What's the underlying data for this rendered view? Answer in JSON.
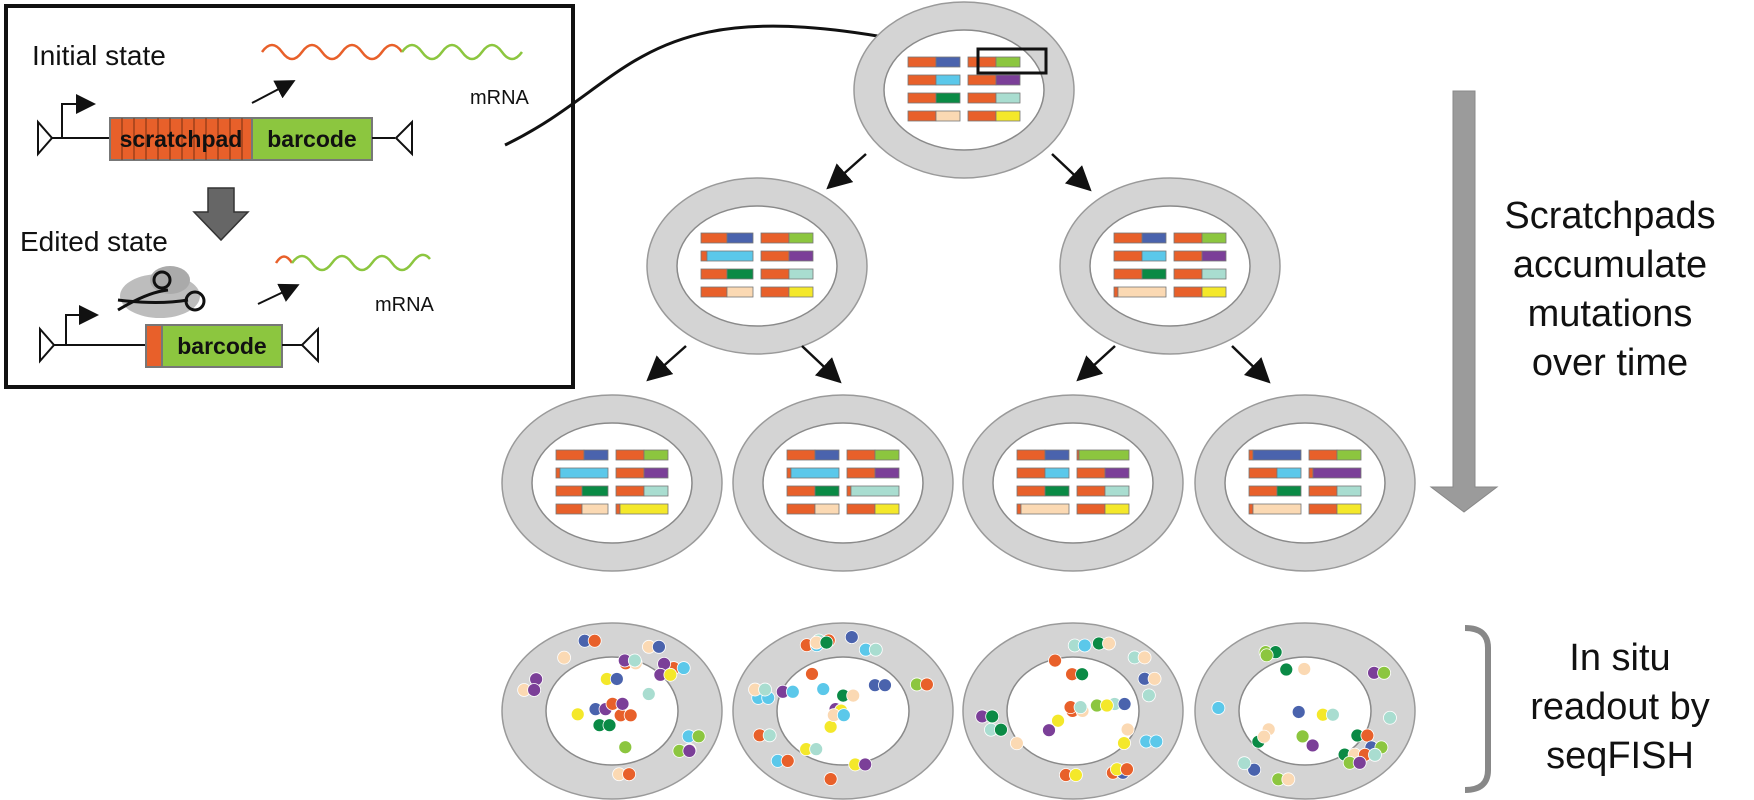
{
  "inset": {
    "initial_title": "Initial state",
    "edited_title": "Edited state",
    "scratchpad_label": "scratchpad",
    "barcode_label": "barcode",
    "barcode_label_edited": "barcode",
    "mrna_label_1": "mRNA",
    "mrna_label_2": "mRNA"
  },
  "side_labels": {
    "accumulate": [
      "Scratchpads",
      "accumulate",
      "mutations",
      "over time"
    ],
    "readout": [
      "In situ",
      "readout by",
      "seqFISH"
    ]
  },
  "colors": {
    "scratchpad": "#e8602a",
    "barcode_green": "#8cc63f",
    "blue": "#4a63ad",
    "light_blue": "#5bc8ea",
    "purple": "#7b3f98",
    "dark_green": "#0a8a45",
    "mint": "#a9ddd0",
    "peach": "#fbd9b3",
    "yellow": "#f4e82a",
    "cell_membrane": "#d4d4d4",
    "arrow_gray": "#9b9b9b"
  }
}
